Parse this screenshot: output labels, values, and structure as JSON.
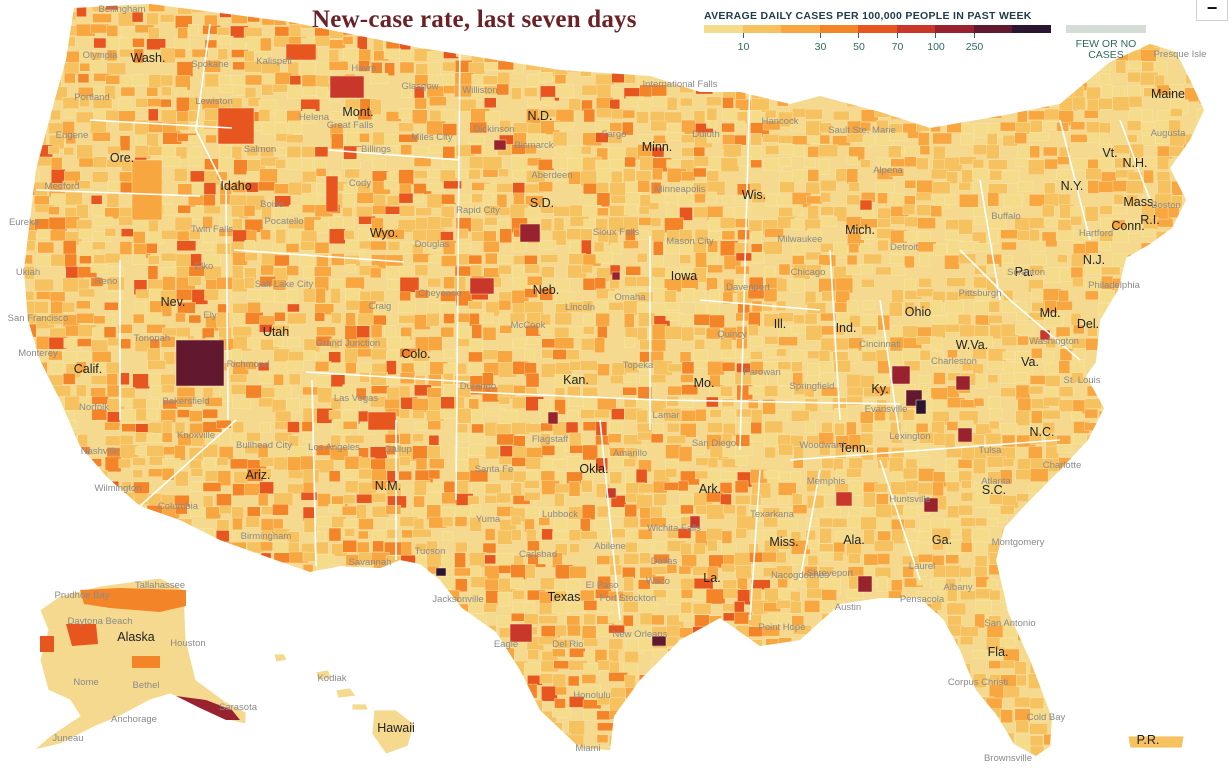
{
  "title": "New-case rate, last seven days",
  "legend": {
    "label": "AVERAGE DAILY CASES PER 100,000 PEOPLE IN PAST WEEK",
    "colors": [
      "#f5dc8a",
      "#f6c260",
      "#f7a640",
      "#f48428",
      "#e8561f",
      "#c8372a",
      "#98232f",
      "#62192f",
      "#2a1630"
    ],
    "ticks": [
      "10",
      "30",
      "50",
      "70",
      "100",
      "250"
    ],
    "few_label": "FEW OR NO\nCASES",
    "few_color": "#d4ddd6"
  },
  "zoom": {
    "out_label": "−"
  },
  "map": {
    "land_color": "#f4d98e",
    "border_color": "#ffffff",
    "state_labels": [
      "Wash.",
      "Mont.",
      "N.D.",
      "Minn.",
      "Maine",
      "Ore.",
      "Idaho",
      "S.D.",
      "Wis.",
      "Vt.",
      "N.H.",
      "N.Y.",
      "Mass.",
      "R.I.",
      "Conn.",
      "Wyo.",
      "Mich.",
      "Iowa",
      "Nev.",
      "Neb.",
      "Pa.",
      "N.J.",
      "Utah",
      "Ill.",
      "Ind.",
      "Ohio",
      "Md.",
      "Del.",
      "Colo.",
      "W.Va.",
      "Calif.",
      "Kan.",
      "Mo.",
      "Ky.",
      "Va.",
      "Tenn.",
      "N.C.",
      "Ariz.",
      "N.M.",
      "Okla.",
      "Ark.",
      "S.C.",
      "Miss.",
      "Ala.",
      "Ga.",
      "Texas",
      "La.",
      "Fla.",
      "Alaska",
      "Hawaii",
      "P.R."
    ],
    "city_labels": [
      "Bellingham",
      "Olympia",
      "Spokane",
      "Kalispell",
      "Havre",
      "Glasgow",
      "Williston",
      "International Falls",
      "Presque Isle",
      "Portland",
      "Lewiston",
      "Helena",
      "Great Falls",
      "Dickinson",
      "Fargo",
      "Duluth",
      "Hancock",
      "Sault Ste. Marie",
      "Eugene",
      "Salmon",
      "Billings",
      "Miles City",
      "Bismarck",
      "Augusta",
      "Medford",
      "Boise",
      "Cody",
      "Aberdeen",
      "Minneapolis",
      "Alpena",
      "Eureka",
      "Twin Falls",
      "Pocatello",
      "Rapid City",
      "Sioux Falls",
      "Milwaukee",
      "Buffalo",
      "Boston",
      "Ukiah",
      "Elko",
      "Douglas",
      "Mason City",
      "Detroit",
      "Hartford",
      "Reno",
      "Salt Lake City",
      "Cheyenne",
      "Omaha",
      "Chicago",
      "Davenport",
      "Scranton",
      "San Francisco",
      "Ely",
      "Craig",
      "Lincoln",
      "McCook",
      "Pittsburgh",
      "Philadelphia",
      "Monterey",
      "Tonopah",
      "Grand Junction",
      "Topeka",
      "Quincy",
      "Cincinnati",
      "Charleston",
      "Washington",
      "Richmond",
      "Parowan",
      "St. Louis",
      "Norfolk",
      "Bakersfield",
      "Las Vegas",
      "Durango",
      "Lamar",
      "Springfield",
      "Evansville",
      "Lexington",
      "Knoxville",
      "Bullhead City",
      "Flagstaff",
      "Woodward",
      "Nashville",
      "Los Angeles",
      "Gallup",
      "Santa Fe",
      "Amarillo",
      "Tulsa",
      "Charlotte",
      "Wilmington",
      "San Diego",
      "Memphis",
      "Huntsville",
      "Atlanta",
      "Columbia",
      "Yuma",
      "Lubbock",
      "Wichita Falls",
      "Texarkana",
      "Birmingham",
      "Tucson",
      "Carlsbad",
      "Abilene",
      "Dallas",
      "Shreveport",
      "Montgomery",
      "Savannah",
      "El Paso",
      "Waco",
      "Nacogdoches",
      "Laurel",
      "Albany",
      "Jacksonville",
      "Fort Stockton",
      "Austin",
      "Pensacola",
      "Tallahassee",
      "Prudhoe Bay",
      "Point Hope",
      "New Orleans",
      "Houston",
      "Eagle",
      "Del Rio",
      "San Antonio",
      "Daytona Beach",
      "Nome",
      "Bethel",
      "Anchorage",
      "Kodiak",
      "Honolulu",
      "Corpus Christi",
      "Sarasota",
      "Juneau",
      "Cold Bay",
      "Miami",
      "Brownsville",
      "Key West"
    ]
  }
}
